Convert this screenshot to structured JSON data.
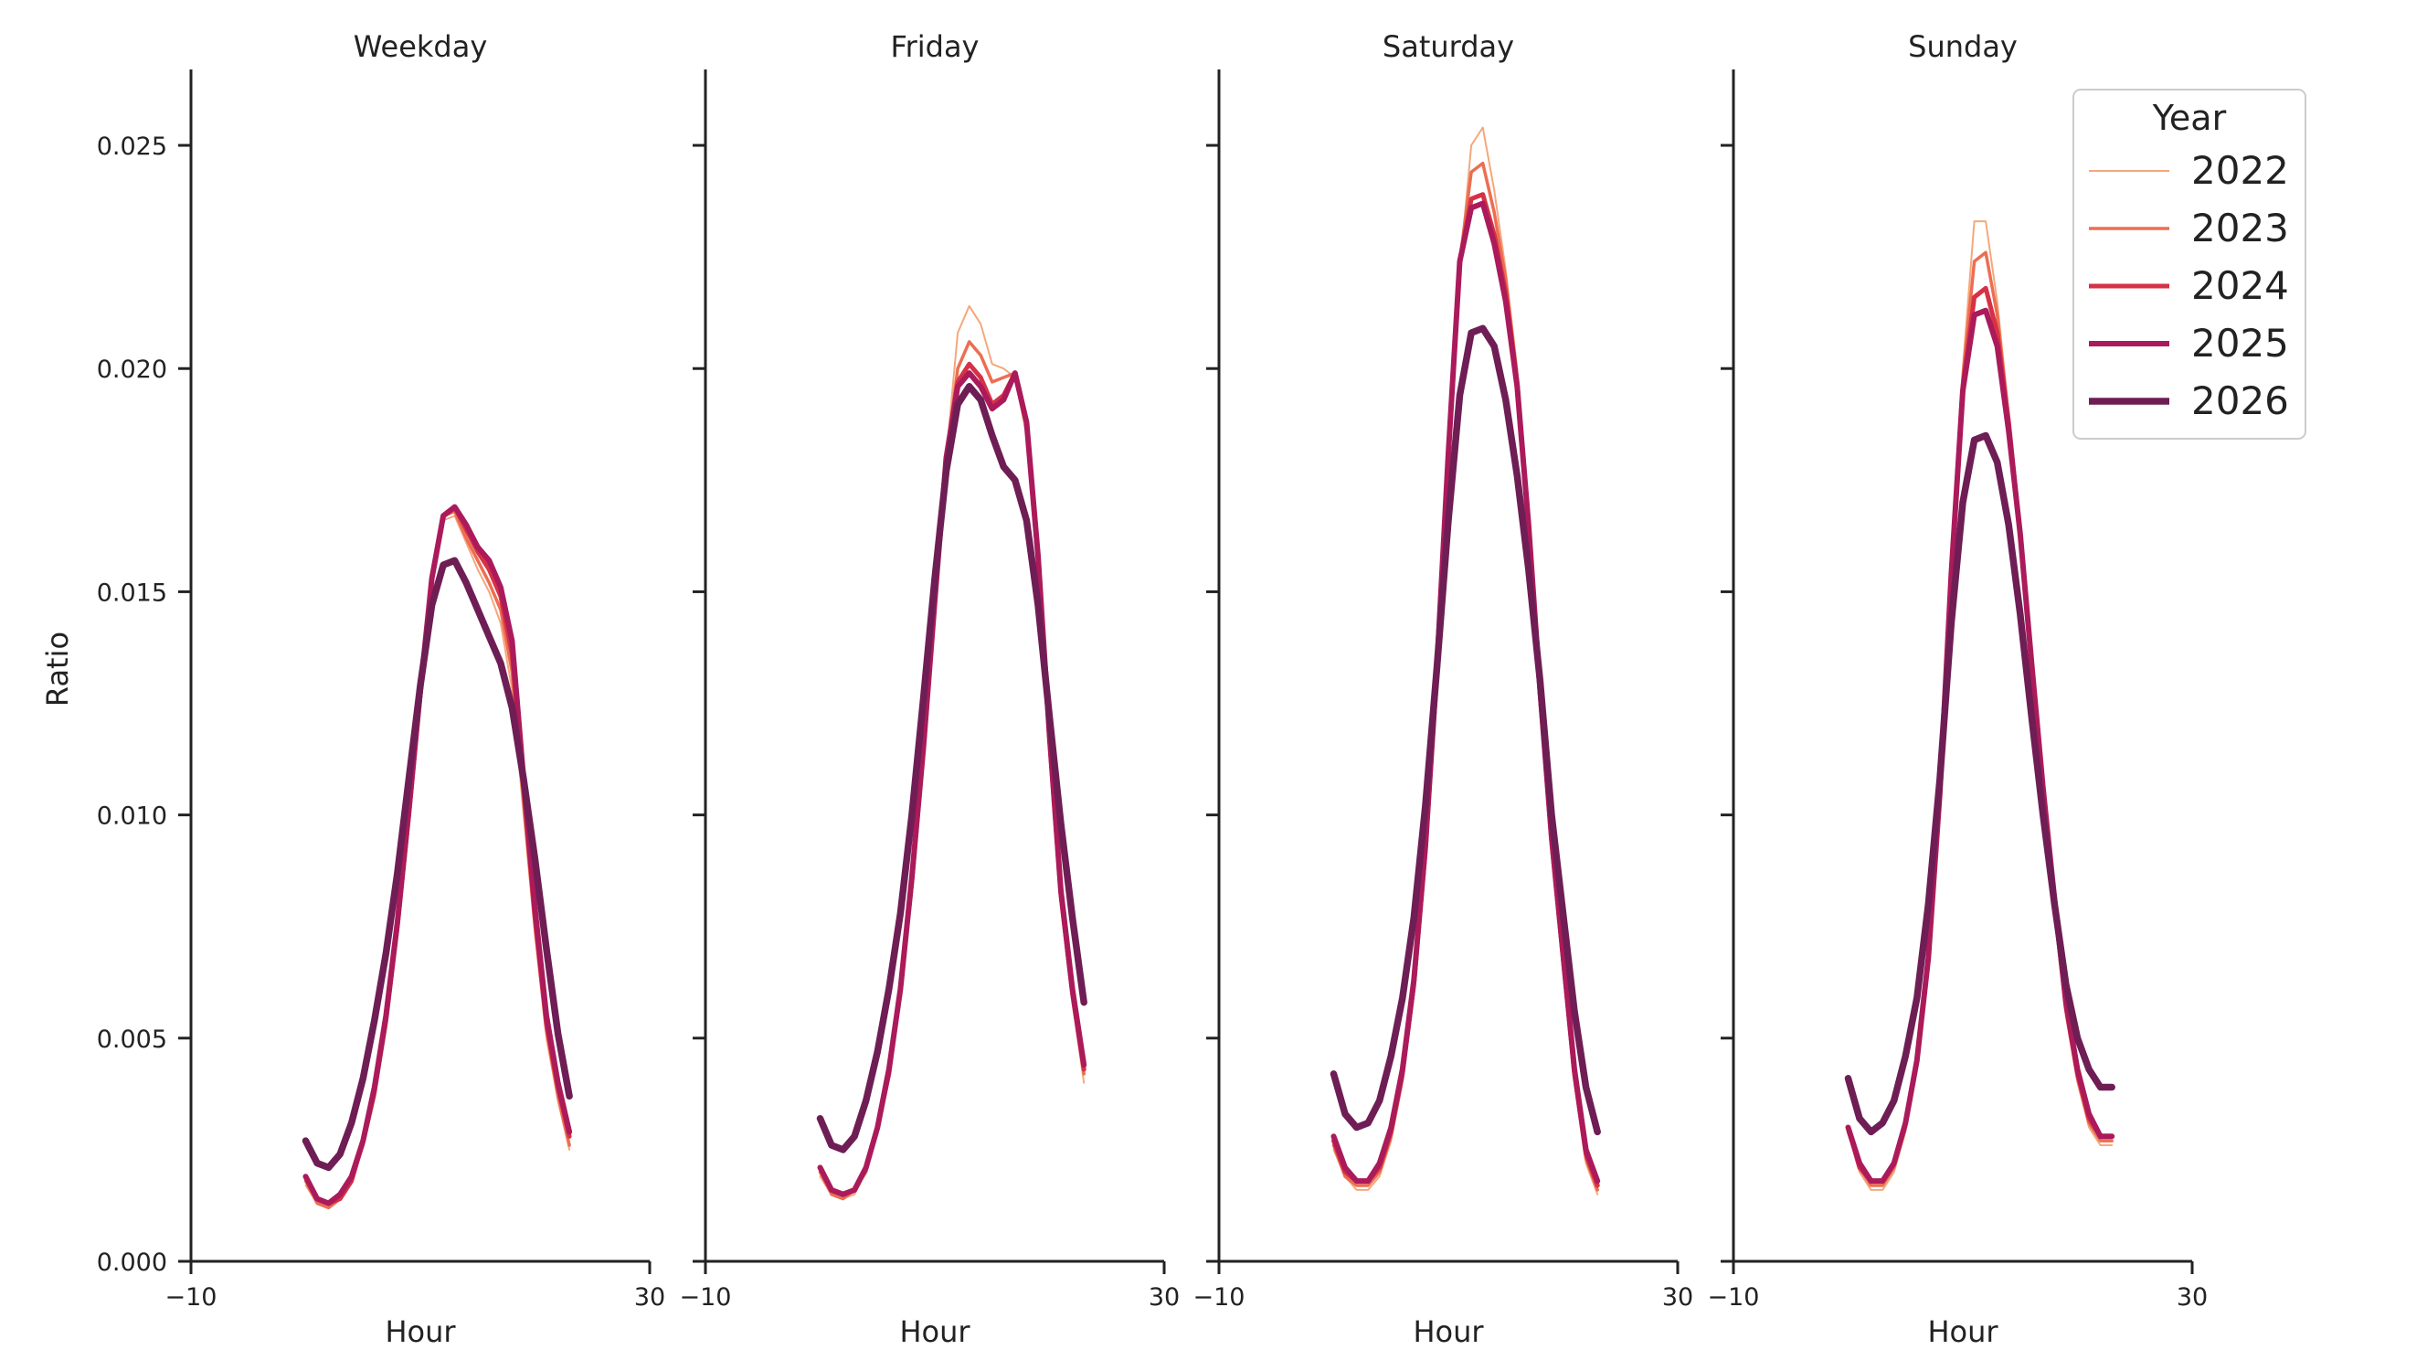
{
  "figure": {
    "ylabel": "Ratio",
    "legend": {
      "title": "Year",
      "placement": "top-right"
    }
  },
  "chart_data": [
    {
      "type": "line",
      "title": "Weekday",
      "xlabel": "Hour",
      "ylabel": "Ratio",
      "xlim": [
        -10,
        30
      ],
      "ylim": [
        0,
        0.0267
      ],
      "xticks": [
        "−10",
        "30"
      ],
      "yticks": [
        "0.000",
        "0.005",
        "0.010",
        "0.015",
        "0.020",
        "0.025"
      ],
      "x": [
        0,
        1,
        2,
        3,
        4,
        5,
        6,
        7,
        8,
        9,
        10,
        11,
        12,
        13,
        14,
        15,
        16,
        17,
        18,
        19,
        20,
        21,
        22,
        23
      ],
      "series": [
        {
          "name": "2022",
          "values": [
            0.0017,
            0.0013,
            0.0012,
            0.0014,
            0.0018,
            0.0026,
            0.0037,
            0.0053,
            0.0074,
            0.0099,
            0.0126,
            0.0152,
            0.0166,
            0.0167,
            0.0161,
            0.0155,
            0.015,
            0.0143,
            0.0128,
            0.01,
            0.0073,
            0.005,
            0.0036,
            0.0025
          ]
        },
        {
          "name": "2023",
          "values": [
            0.0018,
            0.0013,
            0.0012,
            0.0014,
            0.0018,
            0.0026,
            0.0037,
            0.0053,
            0.0075,
            0.01,
            0.0127,
            0.0153,
            0.0167,
            0.0168,
            0.0162,
            0.0157,
            0.0152,
            0.0146,
            0.0132,
            0.0103,
            0.0075,
            0.0052,
            0.0037,
            0.0026
          ]
        },
        {
          "name": "2024",
          "values": [
            0.0019,
            0.0014,
            0.0013,
            0.0014,
            0.0018,
            0.0027,
            0.0038,
            0.0054,
            0.0075,
            0.01,
            0.0127,
            0.0153,
            0.0167,
            0.0169,
            0.0164,
            0.0159,
            0.0155,
            0.0149,
            0.0136,
            0.0106,
            0.0077,
            0.0053,
            0.0039,
            0.0028
          ]
        },
        {
          "name": "2025",
          "values": [
            0.0019,
            0.0014,
            0.0013,
            0.0015,
            0.0019,
            0.0027,
            0.0039,
            0.0055,
            0.0076,
            0.0101,
            0.0128,
            0.0153,
            0.0167,
            0.0169,
            0.0165,
            0.016,
            0.0157,
            0.0151,
            0.0139,
            0.0108,
            0.0079,
            0.0055,
            0.004,
            0.0029
          ]
        },
        {
          "name": "2026",
          "values": [
            0.0027,
            0.0022,
            0.0021,
            0.0024,
            0.0031,
            0.0041,
            0.0054,
            0.0069,
            0.0087,
            0.0108,
            0.0129,
            0.0147,
            0.0156,
            0.0157,
            0.0152,
            0.0146,
            0.014,
            0.0134,
            0.0124,
            0.0108,
            0.009,
            0.007,
            0.0051,
            0.0037
          ]
        }
      ]
    },
    {
      "type": "line",
      "title": "Friday",
      "xlabel": "Hour",
      "xlim": [
        -10,
        30
      ],
      "ylim": [
        0,
        0.0267
      ],
      "xticks": [
        "−10",
        "30"
      ],
      "x": [
        0,
        1,
        2,
        3,
        4,
        5,
        6,
        7,
        8,
        9,
        10,
        11,
        12,
        13,
        14,
        15,
        16,
        17,
        18,
        19,
        20,
        21,
        22,
        23
      ],
      "series": [
        {
          "name": "2022",
          "values": [
            0.0019,
            0.0015,
            0.0014,
            0.0015,
            0.002,
            0.0029,
            0.0041,
            0.006,
            0.0085,
            0.0115,
            0.0148,
            0.018,
            0.0208,
            0.0214,
            0.021,
            0.0201,
            0.02,
            0.0198,
            0.0185,
            0.0155,
            0.0115,
            0.008,
            0.0058,
            0.004
          ]
        },
        {
          "name": "2023",
          "values": [
            0.002,
            0.0015,
            0.0014,
            0.0016,
            0.002,
            0.003,
            0.0042,
            0.006,
            0.0085,
            0.0115,
            0.0148,
            0.018,
            0.02,
            0.0206,
            0.0203,
            0.0197,
            0.0198,
            0.0199,
            0.0187,
            0.0156,
            0.0116,
            0.0081,
            0.0059,
            0.0042
          ]
        },
        {
          "name": "2024",
          "values": [
            0.0021,
            0.0016,
            0.0015,
            0.0016,
            0.0021,
            0.003,
            0.0042,
            0.0061,
            0.0085,
            0.0115,
            0.0148,
            0.018,
            0.0197,
            0.0201,
            0.0198,
            0.0192,
            0.0194,
            0.0199,
            0.0188,
            0.0157,
            0.0117,
            0.0082,
            0.006,
            0.0043
          ]
        },
        {
          "name": "2025",
          "values": [
            0.0021,
            0.0016,
            0.0015,
            0.0016,
            0.0021,
            0.003,
            0.0043,
            0.0061,
            0.0086,
            0.0115,
            0.0148,
            0.018,
            0.0196,
            0.0199,
            0.0196,
            0.0191,
            0.0193,
            0.0199,
            0.0188,
            0.0158,
            0.0118,
            0.0083,
            0.0061,
            0.0044
          ]
        },
        {
          "name": "2026",
          "values": [
            0.0032,
            0.0026,
            0.0025,
            0.0028,
            0.0036,
            0.0047,
            0.0061,
            0.0078,
            0.01,
            0.0126,
            0.0153,
            0.0177,
            0.0192,
            0.0196,
            0.0193,
            0.0185,
            0.0178,
            0.0175,
            0.0166,
            0.0147,
            0.0122,
            0.0098,
            0.0077,
            0.0058
          ]
        }
      ]
    },
    {
      "type": "line",
      "title": "Saturday",
      "xlabel": "Hour",
      "xlim": [
        -10,
        30
      ],
      "ylim": [
        0,
        0.0267
      ],
      "xticks": [
        "−10",
        "30"
      ],
      "x": [
        0,
        1,
        2,
        3,
        4,
        5,
        6,
        7,
        8,
        9,
        10,
        11,
        12,
        13,
        14,
        15,
        16,
        17,
        18,
        19,
        20,
        21,
        22,
        23
      ],
      "series": [
        {
          "name": "2022",
          "values": [
            0.0025,
            0.0019,
            0.0016,
            0.0016,
            0.0019,
            0.0027,
            0.004,
            0.006,
            0.009,
            0.013,
            0.0178,
            0.0222,
            0.025,
            0.0254,
            0.024,
            0.0222,
            0.02,
            0.0165,
            0.0125,
            0.0092,
            0.0066,
            0.004,
            0.0022,
            0.0015
          ]
        },
        {
          "name": "2023",
          "values": [
            0.0026,
            0.0019,
            0.0017,
            0.0017,
            0.002,
            0.0028,
            0.0041,
            0.0061,
            0.0091,
            0.0131,
            0.018,
            0.0224,
            0.0244,
            0.0246,
            0.0235,
            0.022,
            0.0198,
            0.0165,
            0.0126,
            0.0093,
            0.0067,
            0.0041,
            0.0023,
            0.0016
          ]
        },
        {
          "name": "2024",
          "values": [
            0.0027,
            0.002,
            0.0018,
            0.0018,
            0.0021,
            0.0029,
            0.0042,
            0.0062,
            0.0092,
            0.0132,
            0.018,
            0.0224,
            0.0238,
            0.0239,
            0.023,
            0.0217,
            0.0197,
            0.0165,
            0.0127,
            0.0094,
            0.0068,
            0.0042,
            0.0024,
            0.0017
          ]
        },
        {
          "name": "2025",
          "values": [
            0.0028,
            0.0021,
            0.0018,
            0.0018,
            0.0022,
            0.003,
            0.0043,
            0.0063,
            0.0093,
            0.0133,
            0.0181,
            0.0224,
            0.0236,
            0.0237,
            0.0228,
            0.0215,
            0.0196,
            0.0165,
            0.0128,
            0.0095,
            0.0069,
            0.0043,
            0.0025,
            0.0018
          ]
        },
        {
          "name": "2026",
          "values": [
            0.0042,
            0.0033,
            0.003,
            0.0031,
            0.0036,
            0.0046,
            0.0059,
            0.0077,
            0.0102,
            0.0133,
            0.0166,
            0.0194,
            0.0208,
            0.0209,
            0.0205,
            0.0193,
            0.0176,
            0.0155,
            0.013,
            0.01,
            0.0078,
            0.0056,
            0.0039,
            0.0029
          ]
        }
      ]
    },
    {
      "type": "line",
      "title": "Sunday",
      "xlabel": "Hour",
      "xlim": [
        -10,
        30
      ],
      "ylim": [
        0,
        0.0267
      ],
      "xticks": [
        "−10",
        "30"
      ],
      "x": [
        0,
        1,
        2,
        3,
        4,
        5,
        6,
        7,
        8,
        9,
        10,
        11,
        12,
        13,
        14,
        15,
        16,
        17,
        18,
        19,
        20,
        21,
        22,
        23
      ],
      "series": [
        {
          "name": "2022",
          "values": [
            0.0029,
            0.002,
            0.0016,
            0.0016,
            0.002,
            0.0029,
            0.0043,
            0.0066,
            0.0103,
            0.0153,
            0.02,
            0.0233,
            0.0233,
            0.0215,
            0.019,
            0.0162,
            0.0132,
            0.0104,
            0.0078,
            0.0055,
            0.004,
            0.003,
            0.0026,
            0.0026
          ]
        },
        {
          "name": "2023",
          "values": [
            0.0029,
            0.0021,
            0.0017,
            0.0017,
            0.0021,
            0.003,
            0.0044,
            0.0067,
            0.0104,
            0.0154,
            0.0198,
            0.0224,
            0.0226,
            0.0212,
            0.0189,
            0.0162,
            0.0133,
            0.0105,
            0.0079,
            0.0056,
            0.0041,
            0.0031,
            0.0027,
            0.0027
          ]
        },
        {
          "name": "2024",
          "values": [
            0.003,
            0.0021,
            0.0018,
            0.0018,
            0.0022,
            0.0031,
            0.0045,
            0.0068,
            0.0105,
            0.0154,
            0.0196,
            0.0216,
            0.0218,
            0.0208,
            0.0188,
            0.0163,
            0.0134,
            0.0106,
            0.008,
            0.0057,
            0.0042,
            0.0032,
            0.0028,
            0.0028
          ]
        },
        {
          "name": "2025",
          "values": [
            0.003,
            0.0022,
            0.0018,
            0.0018,
            0.0022,
            0.0031,
            0.0045,
            0.0068,
            0.0105,
            0.0154,
            0.0195,
            0.0212,
            0.0213,
            0.0205,
            0.0186,
            0.0163,
            0.0134,
            0.0106,
            0.0081,
            0.0058,
            0.0043,
            0.0033,
            0.0028,
            0.0028
          ]
        },
        {
          "name": "2026",
          "values": [
            0.0041,
            0.0032,
            0.0029,
            0.0031,
            0.0036,
            0.0046,
            0.0059,
            0.008,
            0.0108,
            0.0143,
            0.017,
            0.0184,
            0.0185,
            0.0179,
            0.0165,
            0.0145,
            0.0122,
            0.01,
            0.008,
            0.0062,
            0.005,
            0.0043,
            0.0039,
            0.0039
          ]
        }
      ]
    }
  ],
  "style": {
    "series_colors": [
      "#f5a77d",
      "#ec6e52",
      "#d63146",
      "#ab1a5a",
      "#6e1e54"
    ],
    "series_widths_note": "line width increases with year",
    "axis_color": "#222222"
  }
}
